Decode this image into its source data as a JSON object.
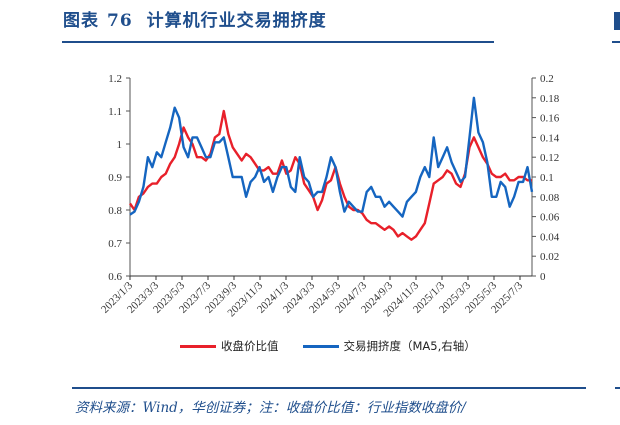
{
  "header": {
    "figure_label": "图表",
    "figure_number": "76",
    "title": "计算机行业交易拥挤度"
  },
  "footer": {
    "source": "资料来源：Wind，华创证券；注：收盘价比值：行业指数收盘价/"
  },
  "colors": {
    "brand": "#1f4e8c",
    "series_close_ratio": "#e8202a",
    "series_crowding": "#1565c0"
  },
  "chart_data": {
    "type": "line",
    "title": "计算机行业交易拥挤度",
    "xlabel": "",
    "ylabel": "收盘价比值",
    "y2label": "交易拥挤度（MA5,右轴）",
    "ylim": [
      0.6,
      1.2
    ],
    "y2lim": [
      0,
      0.2
    ],
    "yticks": [
      "1.2",
      "1.1",
      "1",
      "0.9",
      "0.8",
      "0.7",
      "0.6"
    ],
    "y2ticks": [
      "0.2",
      "0.18",
      "0.16",
      "0.14",
      "0.12",
      "0.1",
      "0.08",
      "0.06",
      "0.04",
      "0.02",
      "0"
    ],
    "categories": [
      "2023/1/3",
      "2023/3/3",
      "2023/5/3",
      "2023/7/3",
      "2023/9/3",
      "2023/11/3",
      "2024/1/3",
      "2024/3/3",
      "2024/5/3",
      "2024/7/3",
      "2024/9/3",
      "2024/11/3",
      "2025/1/3",
      "2025/3/3",
      "2025/5/3",
      "2025/7/3"
    ],
    "grid": false,
    "legend_position": "bottom",
    "series": [
      {
        "name": "收盘价比值",
        "axis": "left",
        "values": [
          0.82,
          0.8,
          0.84,
          0.85,
          0.87,
          0.88,
          0.88,
          0.9,
          0.91,
          0.94,
          0.96,
          1.0,
          1.05,
          1.02,
          1.0,
          0.96,
          0.96,
          0.95,
          0.97,
          1.02,
          1.03,
          1.1,
          1.03,
          0.99,
          0.97,
          0.95,
          0.97,
          0.96,
          0.94,
          0.92,
          0.92,
          0.93,
          0.91,
          0.91,
          0.95,
          0.91,
          0.92,
          0.96,
          0.94,
          0.88,
          0.86,
          0.84,
          0.8,
          0.83,
          0.88,
          0.89,
          0.93,
          0.88,
          0.84,
          0.81,
          0.8,
          0.8,
          0.79,
          0.77,
          0.76,
          0.76,
          0.75,
          0.74,
          0.75,
          0.74,
          0.72,
          0.73,
          0.72,
          0.71,
          0.72,
          0.74,
          0.76,
          0.82,
          0.88,
          0.89,
          0.9,
          0.92,
          0.91,
          0.88,
          0.87,
          0.91,
          0.99,
          1.02,
          0.99,
          0.96,
          0.94,
          0.91,
          0.9,
          0.9,
          0.91,
          0.89,
          0.89,
          0.9,
          0.9,
          0.89,
          0.89
        ]
      },
      {
        "name": "交易拥挤度（MA5,右轴）",
        "axis": "right",
        "values": [
          0.062,
          0.065,
          0.075,
          0.09,
          0.12,
          0.11,
          0.125,
          0.12,
          0.135,
          0.15,
          0.17,
          0.16,
          0.13,
          0.12,
          0.14,
          0.14,
          0.13,
          0.12,
          0.12,
          0.135,
          0.135,
          0.14,
          0.12,
          0.1,
          0.1,
          0.1,
          0.08,
          0.095,
          0.1,
          0.11,
          0.095,
          0.1,
          0.085,
          0.1,
          0.11,
          0.11,
          0.09,
          0.085,
          0.12,
          0.1,
          0.095,
          0.08,
          0.085,
          0.085,
          0.1,
          0.12,
          0.11,
          0.085,
          0.065,
          0.075,
          0.07,
          0.065,
          0.065,
          0.085,
          0.09,
          0.08,
          0.08,
          0.07,
          0.075,
          0.07,
          0.065,
          0.06,
          0.075,
          0.08,
          0.085,
          0.1,
          0.11,
          0.1,
          0.14,
          0.11,
          0.12,
          0.13,
          0.115,
          0.105,
          0.095,
          0.1,
          0.14,
          0.18,
          0.145,
          0.135,
          0.115,
          0.08,
          0.08,
          0.095,
          0.09,
          0.07,
          0.08,
          0.095,
          0.095,
          0.11,
          0.085
        ]
      }
    ]
  },
  "legend": {
    "items": [
      {
        "label": "收盘价比值",
        "color": "#e8202a"
      },
      {
        "label": "交易拥挤度（MA5,右轴）",
        "color": "#1565c0"
      }
    ]
  }
}
